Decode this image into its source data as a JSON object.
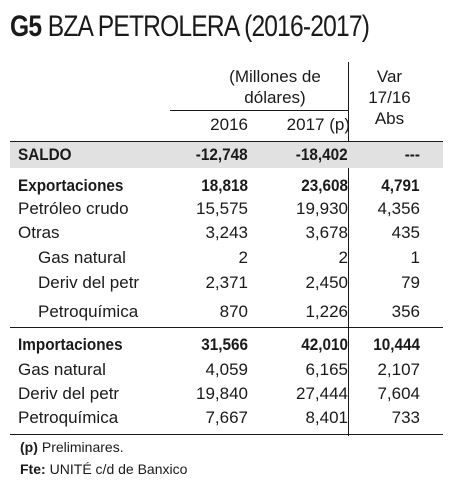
{
  "title": {
    "code": "G5",
    "text": "BZA PETROLERA (2016-2017)"
  },
  "header": {
    "group_line1": "(Millones de",
    "group_line2": "dólares)",
    "col_2016": "2016",
    "col_2017": "2017 (p)",
    "var_line1": "Var",
    "var_line2": "17/16",
    "var_line3": "Abs"
  },
  "rows": [
    {
      "label": "SALDO",
      "v2016": "-12,748",
      "v2017": "-18,402",
      "var": "---"
    },
    {
      "label": "Exportaciones",
      "v2016": "18,818",
      "v2017": "23,608",
      "var": "4,791"
    },
    {
      "label": "Petróleo crudo",
      "v2016": "15,575",
      "v2017": "19,930",
      "var": "4,356"
    },
    {
      "label": "Otras",
      "v2016": "3,243",
      "v2017": "3,678",
      "var": "435"
    },
    {
      "label": "Gas natural",
      "v2016": "2",
      "v2017": "2",
      "var": "1"
    },
    {
      "label": "Deriv del petr",
      "v2016": "2,371",
      "v2017": "2,450",
      "var": "79"
    },
    {
      "label": "Petroquímica",
      "v2016": "870",
      "v2017": "1,226",
      "var": "356"
    },
    {
      "label": "Importaciones",
      "v2016": "31,566",
      "v2017": "42,010",
      "var": "10,444"
    },
    {
      "label": "Gas natural",
      "v2016": "4,059",
      "v2017": "6,165",
      "var": "2,107"
    },
    {
      "label": "Deriv del petr",
      "v2016": "19,840",
      "v2017": "27,444",
      "var": "7,604"
    },
    {
      "label": "Petroquímica",
      "v2016": "7,667",
      "v2017": "8,401",
      "var": "733"
    }
  ],
  "footnotes": {
    "p_marker": "(p)",
    "p_text": "Preliminares.",
    "source_marker": "Fte:",
    "source_text": "UNITÉ c/d de Banxico"
  }
}
